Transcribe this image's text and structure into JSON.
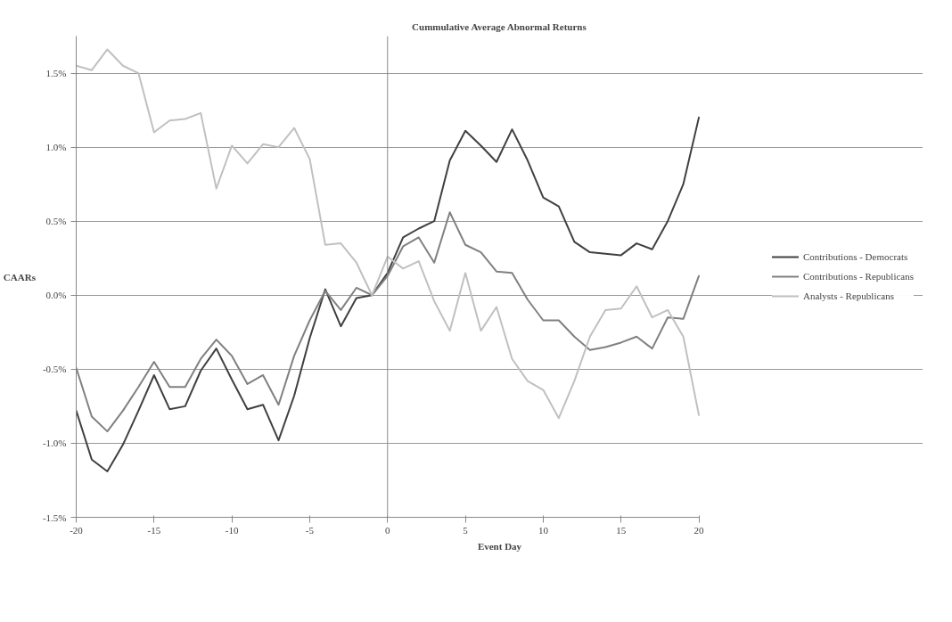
{
  "chart_data": {
    "type": "line",
    "title": "Cummulative Average Abnormal Returns",
    "xlabel": "Event Day",
    "ylabel": "CAARs",
    "x": [
      -20,
      -19,
      -18,
      -17,
      -16,
      -15,
      -14,
      -13,
      -12,
      -11,
      -10,
      -9,
      -8,
      -7,
      -6,
      -5,
      -4,
      -3,
      -2,
      -1,
      0,
      1,
      2,
      3,
      4,
      5,
      6,
      7,
      8,
      9,
      10,
      11,
      12,
      13,
      14,
      15,
      16,
      17,
      18,
      19,
      20
    ],
    "series": [
      {
        "name": "Contributions - Democrats",
        "color": "#404040",
        "values": [
          -0.78,
          -1.11,
          -1.19,
          -1.01,
          -0.78,
          -0.54,
          -0.77,
          -0.75,
          -0.51,
          -0.36,
          -0.57,
          -0.77,
          -0.74,
          -0.98,
          -0.68,
          -0.29,
          0.04,
          -0.21,
          -0.02,
          0.0,
          0.15,
          0.39,
          0.45,
          0.5,
          0.91,
          1.11,
          1.01,
          0.9,
          1.12,
          0.91,
          0.66,
          0.6,
          0.36,
          0.29,
          0.28,
          0.27,
          0.35,
          0.31,
          0.5,
          0.75,
          1.2
        ]
      },
      {
        "name": "Contributions - Republicans",
        "color": "#808080",
        "values": [
          -0.49,
          -0.82,
          -0.92,
          -0.78,
          -0.62,
          -0.45,
          -0.62,
          -0.62,
          -0.43,
          -0.3,
          -0.41,
          -0.6,
          -0.54,
          -0.74,
          -0.41,
          -0.17,
          0.03,
          -0.1,
          0.05,
          0.0,
          0.13,
          0.33,
          0.39,
          0.22,
          0.56,
          0.34,
          0.29,
          0.16,
          0.15,
          -0.03,
          -0.17,
          -0.17,
          -0.28,
          -0.37,
          -0.35,
          -0.32,
          -0.28,
          -0.36,
          -0.15,
          -0.16,
          0.13
        ]
      },
      {
        "name": "Analysts - Republicans",
        "color": "#c0c0c0",
        "values": [
          1.55,
          1.52,
          1.66,
          1.55,
          1.5,
          1.1,
          1.18,
          1.19,
          1.23,
          0.72,
          1.01,
          0.89,
          1.02,
          1.0,
          1.13,
          0.92,
          0.34,
          0.35,
          0.22,
          0.0,
          0.26,
          0.18,
          0.23,
          -0.04,
          -0.24,
          0.15,
          -0.24,
          -0.08,
          -0.43,
          -0.58,
          -0.64,
          -0.83,
          -0.58,
          -0.28,
          -0.1,
          -0.09,
          0.06,
          -0.15,
          -0.1,
          -0.28,
          -0.81
        ]
      }
    ],
    "xlim": [
      -20,
      20
    ],
    "ylim": [
      -1.5,
      1.75
    ],
    "xticks": [
      -20,
      -15,
      -10,
      -5,
      0,
      5,
      10,
      15,
      20
    ],
    "yticks": [
      {
        "value": -1.5,
        "label": "-1.5%"
      },
      {
        "value": -1.0,
        "label": "-1.0%"
      },
      {
        "value": -0.5,
        "label": "-0.5%"
      },
      {
        "value": 0,
        "label": "0.0%"
      },
      {
        "value": 0.5,
        "label": "0.5%"
      },
      {
        "value": 1.0,
        "label": "1.0%"
      },
      {
        "value": 1.5,
        "label": "1.5%"
      }
    ],
    "grid": "y",
    "legend": "right",
    "line_style": "solid",
    "marker": "none"
  }
}
